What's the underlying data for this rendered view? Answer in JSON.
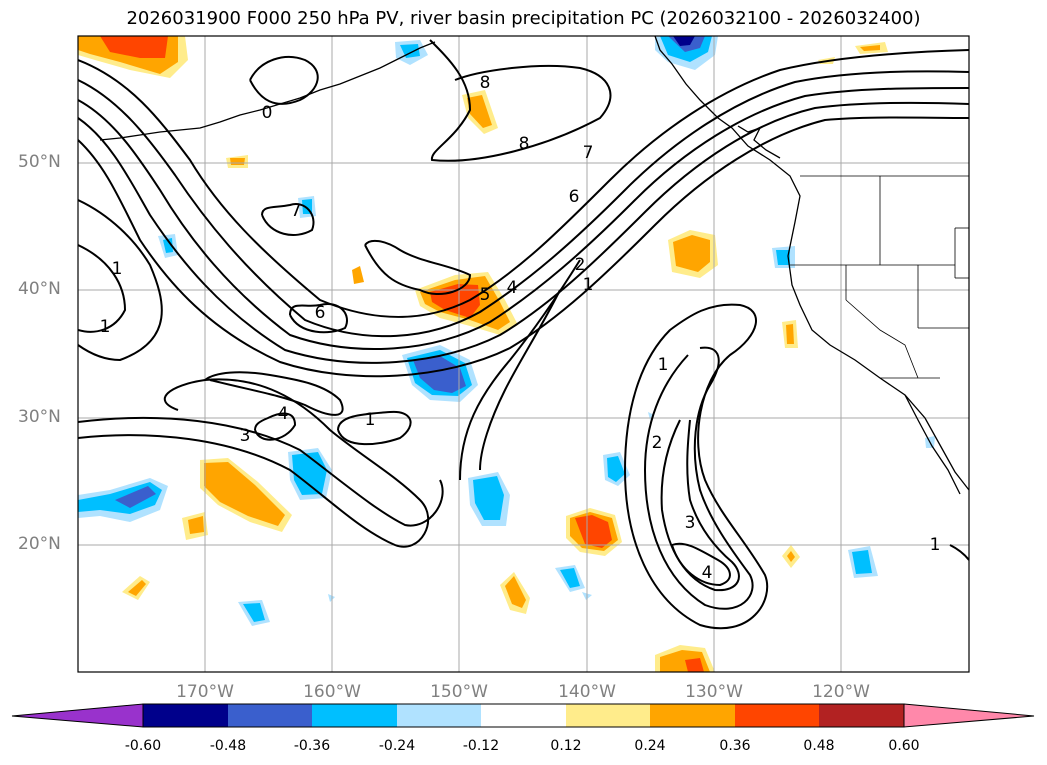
{
  "title": "2026031900 F000 250 hPa PV, river basin precipitation PC (2026032100 - 2026032400)",
  "latitude_labels": [
    "50°N",
    "40°N",
    "30°N",
    "20°N"
  ],
  "longitude_labels": [
    "170°W",
    "160°W",
    "150°W",
    "140°W",
    "130°W",
    "120°W"
  ],
  "contour_labels": [
    "1",
    "1",
    "1",
    "1",
    "1",
    "1",
    "2",
    "2",
    "3",
    "3",
    "4",
    "4",
    "4",
    "5",
    "6",
    "6",
    "7",
    "7",
    "8",
    "8",
    "0"
  ],
  "colorbar": {
    "tick_labels": [
      "-0.60",
      "-0.48",
      "-0.36",
      "-0.24",
      "-0.12",
      "0.12",
      "0.24",
      "0.36",
      "0.48",
      "0.60"
    ],
    "colors": [
      "#9932cc",
      "#00008b",
      "#3a5fcd",
      "#00bfff",
      "#b0e2ff",
      "#ffffff",
      "#ffec8b",
      "#ffa500",
      "#ff4500",
      "#b22222",
      "#ff88aa"
    ]
  },
  "colors": {
    "neg_light": "#b0e2ff",
    "neg_mid": "#00bfff",
    "neg_strong": "#3a5fcd",
    "neg_max": "#00008b",
    "pos_light": "#ffec8b",
    "pos_mid": "#ffa500",
    "pos_strong": "#ff4500"
  }
}
